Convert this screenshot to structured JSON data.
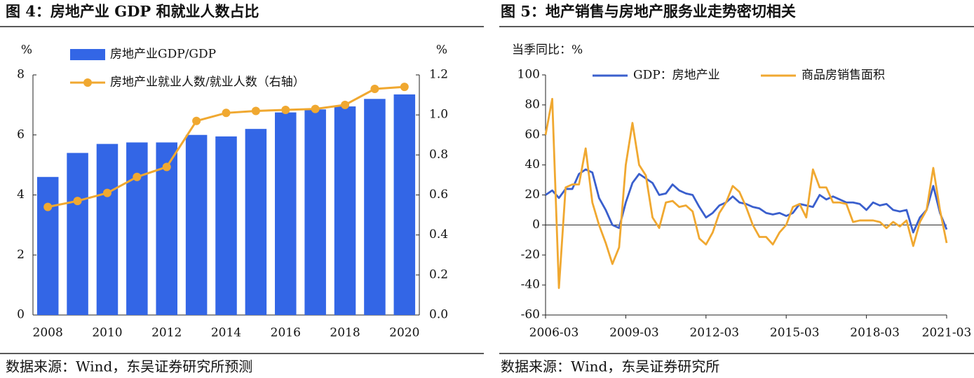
{
  "chart_data": [
    {
      "type": "bar",
      "title": "图 4：房地产业 GDP 和就业人数占比",
      "source": "数据来源：Wind，东吴证券研究所预测",
      "y_label": "%",
      "y2_label": "%",
      "categories": [
        "2008",
        null,
        "2010",
        null,
        "2012",
        null,
        "2014",
        null,
        "2016",
        null,
        "2018",
        null,
        "2020"
      ],
      "series": [
        {
          "name": "房地产业GDP/GDP",
          "type": "bar",
          "color": "#3366e6",
          "values": [
            4.6,
            5.4,
            5.7,
            5.75,
            5.75,
            6.0,
            5.95,
            6.2,
            6.75,
            6.85,
            6.95,
            7.2,
            7.35
          ]
        },
        {
          "name": "房地产业就业人数/就业人数（右轴）",
          "type": "line",
          "axis": "y2",
          "color": "#f0a830",
          "values": [
            0.54,
            0.57,
            0.61,
            0.69,
            0.74,
            0.97,
            1.01,
            1.02,
            1.025,
            1.03,
            1.05,
            1.13,
            1.14
          ]
        }
      ],
      "ylim": [
        0,
        8
      ],
      "yticks": [
        0,
        2,
        4,
        6,
        8
      ],
      "y2lim": [
        0,
        1.2
      ],
      "y2ticks": [
        {
          "value": 0,
          "label": "0.0"
        },
        0.2,
        0.4,
        0.6,
        0.8,
        {
          "value": 1,
          "label": "1.0"
        },
        1.2
      ]
    },
    {
      "type": "line",
      "title": "图 5：地产销售与房地产服务业走势密切相关",
      "source": "数据来源：Wind，东吴证券研究所",
      "y_label": "当季同比：%",
      "categories": [
        "2006-03",
        null,
        null,
        null,
        null,
        null,
        null,
        null,
        null,
        null,
        null,
        null,
        "2009-03",
        null,
        null,
        null,
        null,
        null,
        null,
        null,
        null,
        null,
        null,
        null,
        "2012-03",
        null,
        null,
        null,
        null,
        null,
        null,
        null,
        null,
        null,
        null,
        null,
        "2015-03",
        null,
        null,
        null,
        null,
        null,
        null,
        null,
        null,
        null,
        null,
        null,
        "2018-03",
        null,
        null,
        null,
        null,
        null,
        null,
        null,
        null,
        null,
        null,
        null,
        "2021-03"
      ],
      "series": [
        {
          "name": "GDP：房地产业",
          "color": "#3a5fcd",
          "values": [
            20,
            23,
            18,
            24,
            24,
            34,
            37,
            35,
            18,
            10,
            0,
            -2,
            15,
            28,
            34,
            31,
            28,
            20,
            21,
            27,
            23,
            21,
            20,
            12,
            5,
            8,
            13,
            15,
            19,
            15,
            14,
            12,
            11,
            8,
            7,
            8,
            6,
            8,
            14,
            13,
            12,
            20,
            17,
            19,
            17,
            15,
            15,
            14,
            10,
            15,
            13,
            14,
            10,
            9,
            10,
            -5,
            5,
            10,
            26,
            8,
            -3
          ]
        },
        {
          "name": "商品房销售面积",
          "color": "#f0a830",
          "values": [
            60,
            84,
            -42,
            25,
            27,
            27,
            51,
            15,
            0,
            -12,
            -26,
            -15,
            40,
            68,
            40,
            33,
            5,
            -2,
            15,
            16,
            12,
            13,
            9,
            -9,
            -13,
            -5,
            8,
            15,
            26,
            22,
            12,
            0,
            -8,
            -8,
            -13,
            -5,
            0,
            12,
            14,
            5,
            37,
            25,
            25,
            15,
            15,
            14,
            2,
            3,
            3,
            3,
            2,
            -2,
            2,
            -1,
            3,
            -14,
            2,
            10,
            38,
            10,
            -12
          ]
        }
      ],
      "ylim": [
        -60,
        100
      ],
      "yticks": [
        -60,
        -40,
        -20,
        0,
        20,
        40,
        60,
        80,
        100
      ]
    }
  ]
}
